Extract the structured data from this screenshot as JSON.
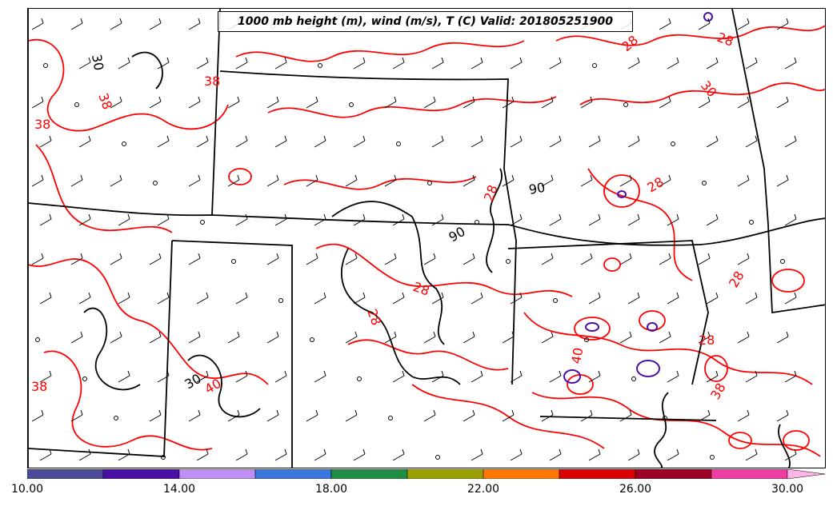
{
  "title": "1000 mb height (m), wind (m/s), T (C) Valid: 201805251900",
  "colorbar": {
    "colors": [
      "#4a4a99",
      "#4b0fa5",
      "#c08ff5",
      "#3b77dd",
      "#218c44",
      "#9aa000",
      "#ff7700",
      "#dd0000",
      "#9d0025",
      "#ef3da3"
    ],
    "extend_color": "#ffb6e6",
    "range": [
      10,
      30
    ],
    "tick_labels": [
      "10.00",
      "14.00",
      "18.00",
      "22.00",
      "26.00",
      "30.00"
    ]
  },
  "contour_labels": {
    "temperature_color": "#ff0000",
    "height_color": "#000000",
    "temp_labels": [
      "38",
      "40",
      "38",
      "38",
      "38",
      "28",
      "30",
      "28",
      "28",
      "28",
      "28",
      "28",
      "28",
      "28",
      "40",
      "38"
    ],
    "height_labels": [
      "30",
      "90",
      "90",
      "30"
    ]
  }
}
